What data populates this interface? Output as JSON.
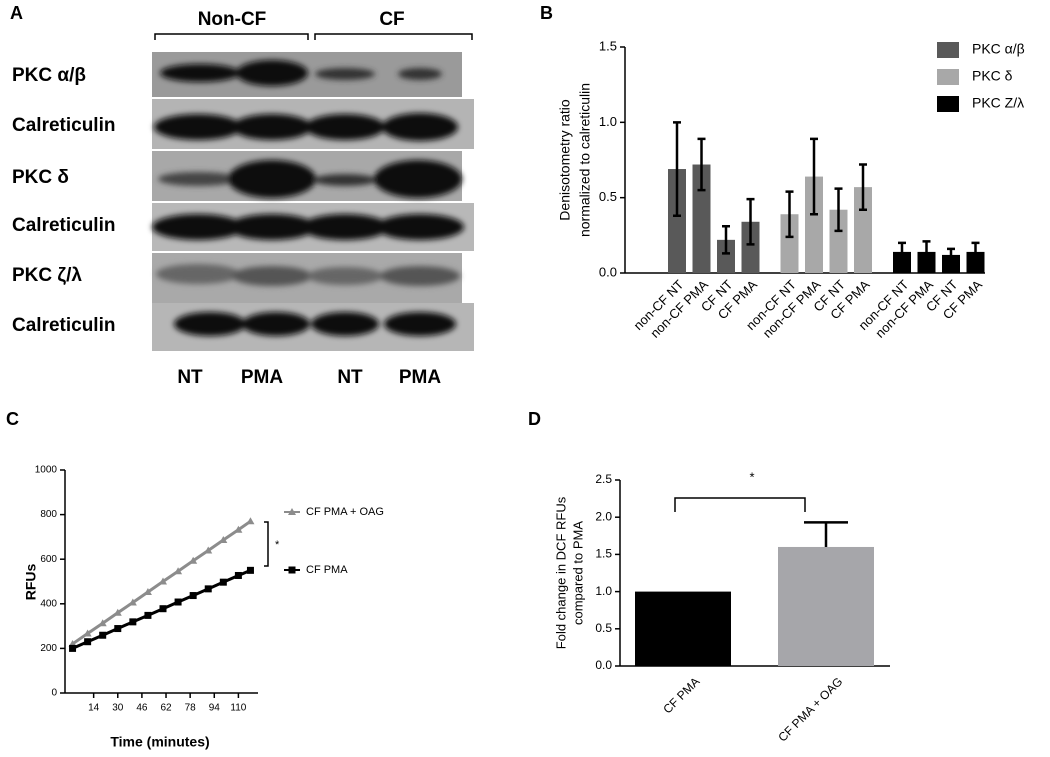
{
  "panel_labels": [
    "A",
    "B",
    "C",
    "D"
  ],
  "blot": {
    "groups": [
      "Non-CF",
      "CF"
    ],
    "rows": [
      "PKC α/β",
      "Calreticulin",
      "PKC δ",
      "Calreticulin",
      "PKC ζ/λ",
      "Calreticulin"
    ],
    "lanes": [
      "NT",
      "PMA",
      "NT",
      "PMA"
    ]
  },
  "chart_data": [
    {
      "type": "bar",
      "ylabel": [
        "Denisotometry ratio",
        "normalized to calreticulin"
      ],
      "categories": [
        "non-CF NT",
        "non-CF PMA",
        "CF NT",
        "CF PMA"
      ],
      "series": [
        {
          "name": "PKC α/β",
          "color": "#595959",
          "values": [
            0.69,
            0.72,
            0.22,
            0.34
          ],
          "errors": [
            0.31,
            0.17,
            0.09,
            0.15
          ]
        },
        {
          "name": "PKC δ",
          "color": "#a8a8a8",
          "values": [
            0.39,
            0.64,
            0.42,
            0.57
          ],
          "errors": [
            0.15,
            0.25,
            0.14,
            0.15
          ]
        },
        {
          "name": "PKC Z/λ",
          "color": "#000000",
          "values": [
            0.14,
            0.14,
            0.12,
            0.14
          ],
          "errors": [
            0.06,
            0.07,
            0.04,
            0.06
          ]
        }
      ],
      "ylim": [
        0,
        1.5
      ],
      "yticks": [
        {
          "value": 0,
          "label": "0.0"
        },
        {
          "value": 0.5,
          "label": "0.5"
        },
        {
          "value": 1,
          "label": "1.0"
        },
        {
          "value": 1.5,
          "label": "1.5"
        }
      ],
      "legend": "upper right"
    },
    {
      "type": "line",
      "xlabel": "Time (minutes)",
      "ylabel": "RFUs",
      "x": [
        0,
        10,
        20,
        30,
        40,
        50,
        60,
        70,
        80,
        90,
        100,
        110,
        118
      ],
      "series": [
        {
          "name": "CF PMA + OAG",
          "color": "#8c8c8c",
          "values": [
            220,
            267,
            313,
            360,
            406,
            453,
            500,
            546,
            593,
            639,
            686,
            732,
            770
          ]
        },
        {
          "name": "CF PMA",
          "color": "#000000",
          "values": [
            200,
            230,
            259,
            289,
            319,
            348,
            378,
            408,
            437,
            467,
            497,
            527,
            550
          ]
        }
      ],
      "xlim": [
        -5,
        123
      ],
      "xticks": [
        14,
        30,
        46,
        62,
        78,
        94,
        110
      ],
      "ylim": [
        0,
        1000
      ],
      "yticks": [
        0,
        200,
        400,
        600,
        800,
        1000
      ],
      "annotation": "*"
    },
    {
      "type": "bar",
      "ylabel": [
        "Fold change in DCF RFUs",
        "compared to PMA"
      ],
      "categories": [
        "CF PMA",
        "CF PMA + OAG"
      ],
      "values": [
        1.0,
        1.6
      ],
      "errors": [
        0,
        0.33
      ],
      "colors": [
        "#000000",
        "#a6a6aa"
      ],
      "ylim": [
        0,
        2.5
      ],
      "yticks": [
        {
          "value": 0,
          "label": "0.0"
        },
        {
          "value": 0.5,
          "label": "0.5"
        },
        {
          "value": 1,
          "label": "1.0"
        },
        {
          "value": 1.5,
          "label": "1.5"
        },
        {
          "value": 2,
          "label": "2.0"
        },
        {
          "value": 2.5,
          "label": "2.5"
        }
      ],
      "annotation": "*"
    }
  ]
}
